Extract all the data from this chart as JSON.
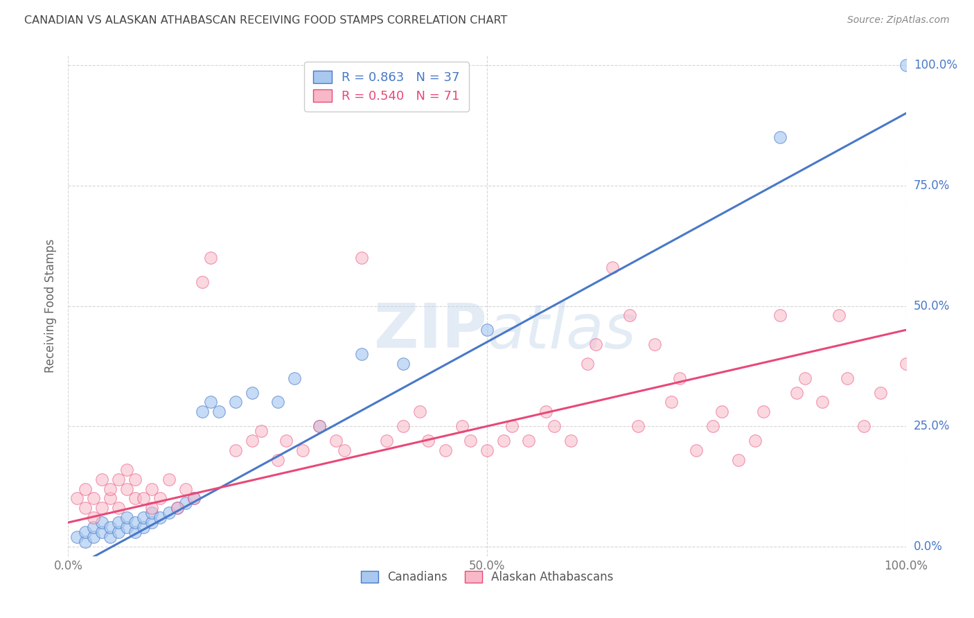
{
  "title": "CANADIAN VS ALASKAN ATHABASCAN RECEIVING FOOD STAMPS CORRELATION CHART",
  "source": "Source: ZipAtlas.com",
  "ylabel": "Receiving Food Stamps",
  "blue_R": 0.863,
  "blue_N": 37,
  "pink_R": 0.54,
  "pink_N": 71,
  "blue_color": "#A8C8F0",
  "pink_color": "#F8B8C8",
  "blue_line_color": "#4878C8",
  "pink_line_color": "#E84878",
  "legend_blue_text_color": "#4878C8",
  "legend_pink_text_color": "#E84878",
  "right_tick_color": "#4878C8",
  "watermark_color": "#C8D8EC",
  "background_color": "#FFFFFF",
  "grid_color": "#CCCCCC",
  "title_color": "#444444",
  "source_color": "#888888",
  "ytick_values": [
    0,
    25,
    50,
    75,
    100
  ],
  "xtick_values": [
    0,
    50,
    100
  ],
  "blue_line_x": [
    0,
    100
  ],
  "blue_line_y": [
    -5,
    90
  ],
  "pink_line_x": [
    0,
    100
  ],
  "pink_line_y": [
    5,
    45
  ],
  "blue_points": [
    [
      1,
      2
    ],
    [
      2,
      1
    ],
    [
      2,
      3
    ],
    [
      3,
      2
    ],
    [
      3,
      4
    ],
    [
      4,
      3
    ],
    [
      4,
      5
    ],
    [
      5,
      2
    ],
    [
      5,
      4
    ],
    [
      6,
      3
    ],
    [
      6,
      5
    ],
    [
      7,
      4
    ],
    [
      7,
      6
    ],
    [
      8,
      3
    ],
    [
      8,
      5
    ],
    [
      9,
      4
    ],
    [
      9,
      6
    ],
    [
      10,
      5
    ],
    [
      10,
      7
    ],
    [
      11,
      6
    ],
    [
      12,
      7
    ],
    [
      13,
      8
    ],
    [
      14,
      9
    ],
    [
      15,
      10
    ],
    [
      16,
      28
    ],
    [
      17,
      30
    ],
    [
      18,
      28
    ],
    [
      20,
      30
    ],
    [
      22,
      32
    ],
    [
      25,
      30
    ],
    [
      27,
      35
    ],
    [
      30,
      25
    ],
    [
      35,
      40
    ],
    [
      40,
      38
    ],
    [
      50,
      45
    ],
    [
      85,
      85
    ],
    [
      100,
      100
    ]
  ],
  "pink_points": [
    [
      1,
      10
    ],
    [
      2,
      8
    ],
    [
      2,
      12
    ],
    [
      3,
      10
    ],
    [
      3,
      6
    ],
    [
      4,
      14
    ],
    [
      4,
      8
    ],
    [
      5,
      10
    ],
    [
      5,
      12
    ],
    [
      6,
      14
    ],
    [
      6,
      8
    ],
    [
      7,
      12
    ],
    [
      7,
      16
    ],
    [
      8,
      10
    ],
    [
      8,
      14
    ],
    [
      9,
      10
    ],
    [
      10,
      8
    ],
    [
      10,
      12
    ],
    [
      11,
      10
    ],
    [
      12,
      14
    ],
    [
      13,
      8
    ],
    [
      14,
      12
    ],
    [
      15,
      10
    ],
    [
      16,
      55
    ],
    [
      17,
      60
    ],
    [
      20,
      20
    ],
    [
      22,
      22
    ],
    [
      23,
      24
    ],
    [
      25,
      18
    ],
    [
      26,
      22
    ],
    [
      28,
      20
    ],
    [
      30,
      25
    ],
    [
      32,
      22
    ],
    [
      33,
      20
    ],
    [
      35,
      60
    ],
    [
      38,
      22
    ],
    [
      40,
      25
    ],
    [
      42,
      28
    ],
    [
      43,
      22
    ],
    [
      45,
      20
    ],
    [
      47,
      25
    ],
    [
      48,
      22
    ],
    [
      50,
      20
    ],
    [
      52,
      22
    ],
    [
      53,
      25
    ],
    [
      55,
      22
    ],
    [
      57,
      28
    ],
    [
      58,
      25
    ],
    [
      60,
      22
    ],
    [
      62,
      38
    ],
    [
      63,
      42
    ],
    [
      65,
      58
    ],
    [
      67,
      48
    ],
    [
      68,
      25
    ],
    [
      70,
      42
    ],
    [
      72,
      30
    ],
    [
      73,
      35
    ],
    [
      75,
      20
    ],
    [
      77,
      25
    ],
    [
      78,
      28
    ],
    [
      80,
      18
    ],
    [
      82,
      22
    ],
    [
      83,
      28
    ],
    [
      85,
      48
    ],
    [
      87,
      32
    ],
    [
      88,
      35
    ],
    [
      90,
      30
    ],
    [
      92,
      48
    ],
    [
      93,
      35
    ],
    [
      95,
      25
    ],
    [
      97,
      32
    ],
    [
      100,
      38
    ]
  ]
}
